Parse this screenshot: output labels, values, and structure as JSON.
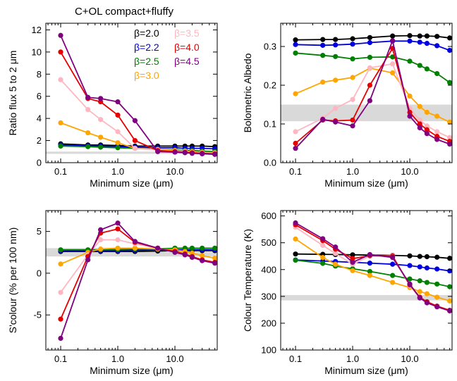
{
  "figure": {
    "title": "C+OL compact+fluffy"
  },
  "legend": {
    "entries": [
      {
        "label": "β=2.0",
        "color": "#000000"
      },
      {
        "label": "β=3.5",
        "color": "#ffb6c1"
      },
      {
        "label": "β=2.2",
        "color": "#0000e0"
      },
      {
        "label": "β=4.0",
        "color": "#e60000"
      },
      {
        "label": "β=2.5",
        "color": "#008000"
      },
      {
        "label": "β=4.5",
        "color": "#800080"
      },
      {
        "label": "β=3.0",
        "color": "#ffa500"
      }
    ]
  },
  "chart_data": [
    {
      "type": "line",
      "xlabel": "Minimum size (μm)",
      "ylabel": "Ratio flux 5 to 2 μm",
      "xscale": "log",
      "xlim": [
        0.055,
        55
      ],
      "ylim": [
        0,
        12.6
      ],
      "xticks": [
        0.1,
        1.0,
        10.0
      ],
      "xtick_labels": [
        "0.1",
        "1.0",
        "10.0"
      ],
      "yticks": [
        0,
        2,
        4,
        6,
        8,
        10,
        12
      ],
      "ytick_labels": [
        "0",
        "2",
        "4",
        "6",
        "8",
        "10",
        "12"
      ],
      "shaded_band": [
        0.8,
        1.0
      ],
      "x": [
        0.1,
        0.3,
        0.5,
        1.0,
        2.0,
        5.0,
        10.0,
        15.0,
        20.0,
        30.0,
        50.0
      ],
      "series": [
        {
          "name": "β=2.0",
          "color": "#000000",
          "values": [
            1.7,
            1.6,
            1.6,
            1.55,
            1.5,
            1.5,
            1.5,
            1.5,
            1.5,
            1.5,
            1.45
          ]
        },
        {
          "name": "β=2.2",
          "color": "#0000e0",
          "values": [
            1.6,
            1.5,
            1.5,
            1.45,
            1.4,
            1.35,
            1.35,
            1.3,
            1.3,
            1.3,
            1.25
          ]
        },
        {
          "name": "β=2.5",
          "color": "#008000",
          "values": [
            1.5,
            1.45,
            1.4,
            1.35,
            1.3,
            1.2,
            1.15,
            1.1,
            1.1,
            1.05,
            1.0
          ]
        },
        {
          "name": "β=3.0",
          "color": "#ffa500",
          "values": [
            3.6,
            2.7,
            2.3,
            1.8,
            1.3,
            1.2,
            1.1,
            1.05,
            1.0,
            0.95,
            0.9
          ]
        },
        {
          "name": "β=3.5",
          "color": "#ffb6c1",
          "values": [
            7.5,
            4.8,
            3.9,
            2.8,
            1.3,
            1.15,
            1.05,
            1.0,
            0.95,
            0.9,
            0.85
          ]
        },
        {
          "name": "β=4.0",
          "color": "#e60000",
          "values": [
            10.0,
            5.8,
            5.5,
            4.3,
            2.0,
            1.1,
            1.0,
            0.95,
            0.9,
            0.85,
            0.8
          ]
        },
        {
          "name": "β=4.5",
          "color": "#800080",
          "values": [
            11.5,
            5.9,
            5.8,
            5.5,
            3.8,
            1.0,
            0.95,
            0.9,
            0.85,
            0.8,
            0.75
          ]
        }
      ]
    },
    {
      "type": "line",
      "xlabel": "Minimum size (μm)",
      "ylabel": "Bolometric Albedo",
      "xscale": "log",
      "xlim": [
        0.055,
        55
      ],
      "ylim": [
        0,
        0.36
      ],
      "xticks": [
        0.1,
        1.0,
        10.0
      ],
      "xtick_labels": [
        "0.1",
        "1.0",
        "10.0"
      ],
      "yticks": [
        0,
        0.1,
        0.2,
        0.3
      ],
      "ytick_labels": [
        "0.0",
        "0.1",
        "0.2",
        "0.3"
      ],
      "shaded_band": [
        0.107,
        0.15
      ],
      "x": [
        0.1,
        0.3,
        0.5,
        1.0,
        2.0,
        5.0,
        10.0,
        15.0,
        20.0,
        30.0,
        50.0
      ],
      "series": [
        {
          "name": "β=2.0",
          "color": "#000000",
          "values": [
            0.317,
            0.318,
            0.318,
            0.32,
            0.323,
            0.327,
            0.328,
            0.327,
            0.327,
            0.326,
            0.322
          ]
        },
        {
          "name": "β=2.2",
          "color": "#0000e0",
          "values": [
            0.305,
            0.303,
            0.304,
            0.306,
            0.31,
            0.314,
            0.314,
            0.311,
            0.308,
            0.302,
            0.29
          ]
        },
        {
          "name": "β=2.5",
          "color": "#008000",
          "values": [
            0.283,
            0.277,
            0.274,
            0.268,
            0.272,
            0.273,
            0.262,
            0.251,
            0.242,
            0.23,
            0.207
          ]
        },
        {
          "name": "β=3.0",
          "color": "#ffa500",
          "values": [
            0.178,
            0.208,
            0.213,
            0.22,
            0.244,
            0.232,
            0.172,
            0.145,
            0.13,
            0.12,
            0.105
          ]
        },
        {
          "name": "β=3.5",
          "color": "#ffb6c1",
          "values": [
            0.08,
            0.115,
            0.14,
            0.163,
            0.245,
            0.255,
            0.14,
            0.11,
            0.095,
            0.08,
            0.065
          ]
        },
        {
          "name": "β=4.0",
          "color": "#e60000",
          "values": [
            0.05,
            0.11,
            0.108,
            0.11,
            0.2,
            0.295,
            0.13,
            0.1,
            0.085,
            0.068,
            0.055
          ]
        },
        {
          "name": "β=4.5",
          "color": "#800080",
          "values": [
            0.037,
            0.112,
            0.105,
            0.095,
            0.16,
            0.315,
            0.12,
            0.09,
            0.075,
            0.06,
            0.048
          ]
        }
      ]
    },
    {
      "type": "line",
      "xlabel": "Minimum size (μm)",
      "ylabel": "S'colour (% per 100 nm)",
      "xscale": "log",
      "xlim": [
        0.055,
        55
      ],
      "ylim": [
        -9.2,
        7.5
      ],
      "xticks": [
        0.1,
        1.0,
        10.0
      ],
      "xtick_labels": [
        "0.1",
        "1.0",
        "10.0"
      ],
      "yticks": [
        -5,
        0,
        5
      ],
      "ytick_labels": [
        "-5",
        "0",
        "5"
      ],
      "shaded_band": [
        2.0,
        3.0
      ],
      "x": [
        0.1,
        0.3,
        0.5,
        1.0,
        2.0,
        5.0,
        10.0,
        15.0,
        20.0,
        30.0,
        50.0
      ],
      "series": [
        {
          "name": "β=2.0",
          "color": "#000000",
          "values": [
            2.6,
            2.6,
            2.6,
            2.6,
            2.6,
            2.65,
            2.7,
            2.7,
            2.7,
            2.7,
            2.7
          ]
        },
        {
          "name": "β=2.2",
          "color": "#0000e0",
          "values": [
            2.7,
            2.7,
            2.7,
            2.7,
            2.75,
            2.8,
            2.8,
            2.8,
            2.8,
            2.8,
            2.8
          ]
        },
        {
          "name": "β=2.5",
          "color": "#008000",
          "values": [
            2.8,
            2.8,
            2.8,
            2.85,
            2.9,
            2.9,
            3.0,
            3.0,
            3.0,
            3.0,
            3.0
          ]
        },
        {
          "name": "β=3.0",
          "color": "#ffa500",
          "values": [
            1.1,
            2.5,
            2.9,
            3.0,
            3.0,
            2.9,
            2.8,
            2.6,
            2.4,
            2.1,
            1.8
          ]
        },
        {
          "name": "β=3.5",
          "color": "#ffb6c1",
          "values": [
            -2.3,
            2.2,
            4.0,
            4.0,
            3.5,
            3.0,
            2.5,
            2.2,
            2.0,
            1.6,
            1.3
          ]
        },
        {
          "name": "β=4.0",
          "color": "#e60000",
          "values": [
            -5.5,
            2.0,
            4.8,
            5.3,
            3.7,
            3.0,
            2.6,
            2.3,
            2.0,
            1.6,
            1.3
          ]
        },
        {
          "name": "β=4.5",
          "color": "#800080",
          "values": [
            -7.8,
            1.6,
            5.2,
            6.0,
            3.8,
            3.0,
            2.5,
            2.2,
            1.9,
            1.5,
            1.2
          ]
        }
      ]
    },
    {
      "type": "line",
      "xlabel": "Minimum size (μm)",
      "ylabel": "Colour Temperature (K)",
      "xscale": "log",
      "xlim": [
        0.055,
        55
      ],
      "ylim": [
        100,
        620
      ],
      "xticks": [
        0.1,
        1.0,
        10.0
      ],
      "xtick_labels": [
        "0.1",
        "1.0",
        "10.0"
      ],
      "yticks": [
        100,
        200,
        300,
        400,
        500,
        600
      ],
      "ytick_labels": [
        "100",
        "200",
        "300",
        "400",
        "500",
        "600"
      ],
      "shaded_band": [
        285,
        305
      ],
      "x": [
        0.1,
        0.3,
        0.5,
        1.0,
        2.0,
        5.0,
        10.0,
        15.0,
        20.0,
        30.0,
        50.0
      ],
      "series": [
        {
          "name": "β=2.0",
          "color": "#000000",
          "values": [
            458,
            457,
            456,
            455,
            454,
            453,
            451,
            449,
            448,
            446,
            442
          ]
        },
        {
          "name": "β=2.2",
          "color": "#0000e0",
          "values": [
            436,
            432,
            430,
            427,
            424,
            420,
            415,
            410,
            406,
            402,
            395
          ]
        },
        {
          "name": "β=2.5",
          "color": "#008000",
          "values": [
            435,
            423,
            413,
            403,
            393,
            378,
            365,
            358,
            352,
            346,
            336
          ]
        },
        {
          "name": "β=3.0",
          "color": "#ffa500",
          "values": [
            514,
            445,
            420,
            396,
            378,
            352,
            333,
            318,
            310,
            297,
            283
          ]
        },
        {
          "name": "β=3.5",
          "color": "#ffb6c1",
          "values": [
            558,
            490,
            460,
            420,
            450,
            452,
            340,
            295,
            278,
            262,
            248
          ]
        },
        {
          "name": "β=4.0",
          "color": "#e60000",
          "values": [
            567,
            508,
            476,
            441,
            452,
            450,
            343,
            297,
            280,
            264,
            248
          ]
        },
        {
          "name": "β=4.5",
          "color": "#800080",
          "values": [
            574,
            515,
            484,
            427,
            456,
            445,
            346,
            294,
            276,
            261,
            246
          ]
        }
      ]
    }
  ]
}
